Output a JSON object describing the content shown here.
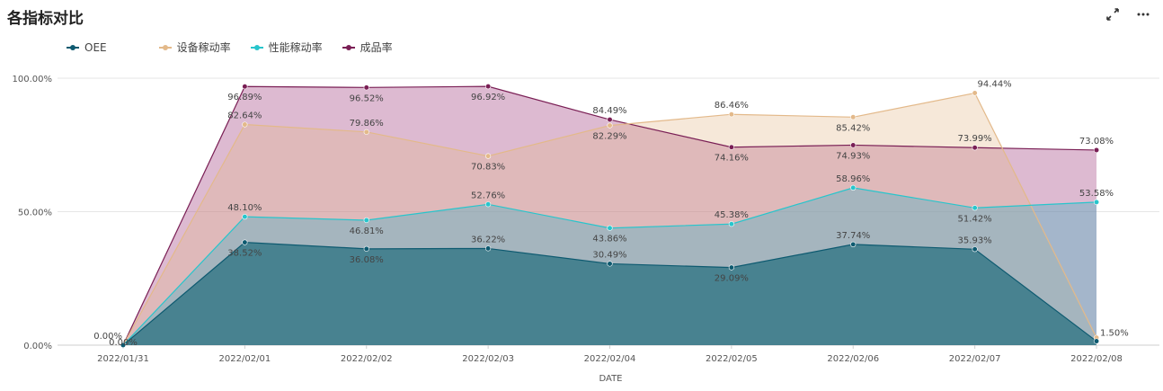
{
  "header": {
    "title": "各指标对比",
    "expand_icon": "expand-icon",
    "more_icon": "more-icon"
  },
  "chart_data": {
    "type": "area",
    "categories": [
      "2022/01/31",
      "2022/02/01",
      "2022/02/02",
      "2022/02/03",
      "2022/02/04",
      "2022/02/05",
      "2022/02/06",
      "2022/02/07",
      "2022/02/08"
    ],
    "xlabel": "DATE",
    "ylabel": "",
    "ylim": [
      0,
      100
    ],
    "y_ticks": [
      "0.00%",
      "50.00%",
      "100.00%"
    ],
    "legend_position": "top-left",
    "grid": true,
    "series": [
      {
        "name": "OEE",
        "color": "#0e5a70",
        "fill": "#0e6374",
        "fill_opacity": 0.62,
        "values": [
          0,
          38.52,
          36.08,
          36.22,
          30.49,
          29.09,
          37.74,
          35.93,
          1.5
        ],
        "labels": [
          "0.00%",
          "38.52%",
          "36.08%",
          "36.22%",
          "30.49%",
          "29.09%",
          "37.74%",
          "35.93%",
          "1.50%"
        ]
      },
      {
        "name": "设备稼动率",
        "color": "#e3b98a",
        "fill": "#e3b98a",
        "fill_opacity": 0.32,
        "values": [
          0,
          82.64,
          79.86,
          70.83,
          82.29,
          86.46,
          85.42,
          94.44,
          2.8
        ],
        "labels": [
          "",
          "82.64%",
          "79.86%",
          "70.83%",
          "82.29%",
          "86.46%",
          "85.42%",
          "94.44%",
          ""
        ]
      },
      {
        "name": "性能稼动率",
        "color": "#28c5cc",
        "fill": "#5fb2c4",
        "fill_opacity": 0.45,
        "values": [
          0,
          48.1,
          46.81,
          52.76,
          43.86,
          45.38,
          58.96,
          51.42,
          53.58
        ],
        "labels": [
          "",
          "48.10%",
          "46.81%",
          "52.76%",
          "43.86%",
          "45.38%",
          "58.96%",
          "51.42%",
          "53.58%"
        ]
      },
      {
        "name": "成品率",
        "color": "#7a1f55",
        "fill": "#a64a86",
        "fill_opacity": 0.38,
        "values": [
          0,
          96.89,
          96.52,
          96.92,
          84.49,
          74.16,
          74.93,
          73.99,
          73.08
        ],
        "labels": [
          "",
          "96.89%",
          "96.52%",
          "96.92%",
          "84.49%",
          "74.16%",
          "74.93%",
          "73.99%",
          "73.08%"
        ]
      }
    ]
  }
}
